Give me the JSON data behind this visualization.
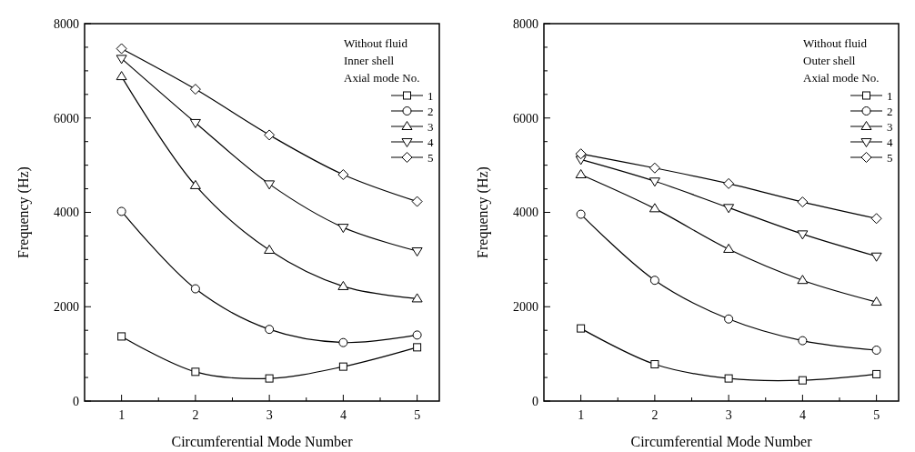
{
  "chart_data": [
    {
      "type": "line",
      "xlabel": "Circumferential Mode Number",
      "ylabel": "Frequency (Hz)",
      "legend_title": "Axial mode No.",
      "annotations": [
        "Without fluid",
        "Inner shell"
      ],
      "legend": "top right",
      "grid": false,
      "line_style": "solid",
      "x": [
        1,
        2,
        3,
        4,
        5
      ],
      "xlim": [
        0.5,
        5.3
      ],
      "xticks": [
        1,
        {
          "value": 1.5,
          "label": null
        },
        2,
        {
          "value": 2.5,
          "label": null
        },
        3,
        {
          "value": 3.5,
          "label": null
        },
        4,
        {
          "value": 4.5,
          "label": null
        },
        5
      ],
      "ylim": [
        0,
        8000
      ],
      "yticks": [
        0,
        {
          "value": 500,
          "label": null
        },
        {
          "value": 1000,
          "label": null
        },
        {
          "value": 1500,
          "label": null
        },
        2000,
        {
          "value": 2500,
          "label": null
        },
        {
          "value": 3000,
          "label": null
        },
        {
          "value": 3500,
          "label": null
        },
        4000,
        {
          "value": 4500,
          "label": null
        },
        {
          "value": 5000,
          "label": null
        },
        {
          "value": 5500,
          "label": null
        },
        6000,
        {
          "value": 6500,
          "label": null
        },
        {
          "value": 7000,
          "label": null
        },
        {
          "value": 7500,
          "label": null
        },
        8000
      ],
      "series": [
        {
          "name": "1",
          "color": "#000000",
          "marker": "square",
          "values": [
            1370,
            620,
            480,
            730,
            1140
          ]
        },
        {
          "name": "2",
          "color": "#000000",
          "marker": "circle",
          "values": [
            4020,
            2380,
            1520,
            1240,
            1400
          ]
        },
        {
          "name": "3",
          "color": "#000000",
          "marker": "triangle",
          "values": [
            6880,
            4570,
            3200,
            2430,
            2170
          ]
        },
        {
          "name": "4",
          "color": "#000000",
          "marker": "triangle-down",
          "values": [
            7260,
            5900,
            4600,
            3680,
            3180
          ]
        },
        {
          "name": "5",
          "color": "#000000",
          "marker": "diamond",
          "values": [
            7470,
            6610,
            5640,
            4800,
            4230
          ]
        }
      ]
    },
    {
      "type": "line",
      "xlabel": "Circumferential Mode Number",
      "ylabel": "Frequency (Hz)",
      "legend_title": "Axial mode No.",
      "annotations": [
        "Without fluid",
        "Outer shell"
      ],
      "legend": "top right",
      "grid": false,
      "line_style": "solid",
      "x": [
        1,
        2,
        3,
        4,
        5
      ],
      "xlim": [
        0.5,
        5.3
      ],
      "xticks": [
        1,
        {
          "value": 1.5,
          "label": null
        },
        2,
        {
          "value": 2.5,
          "label": null
        },
        3,
        {
          "value": 3.5,
          "label": null
        },
        4,
        {
          "value": 4.5,
          "label": null
        },
        5
      ],
      "ylim": [
        0,
        8000
      ],
      "yticks": [
        0,
        {
          "value": 500,
          "label": null
        },
        {
          "value": 1000,
          "label": null
        },
        {
          "value": 1500,
          "label": null
        },
        2000,
        {
          "value": 2500,
          "label": null
        },
        {
          "value": 3000,
          "label": null
        },
        {
          "value": 3500,
          "label": null
        },
        4000,
        {
          "value": 4500,
          "label": null
        },
        {
          "value": 5000,
          "label": null
        },
        {
          "value": 5500,
          "label": null
        },
        6000,
        {
          "value": 6500,
          "label": null
        },
        {
          "value": 7000,
          "label": null
        },
        {
          "value": 7500,
          "label": null
        },
        8000
      ],
      "series": [
        {
          "name": "1",
          "color": "#000000",
          "marker": "square",
          "values": [
            1540,
            780,
            480,
            440,
            570
          ]
        },
        {
          "name": "2",
          "color": "#000000",
          "marker": "circle",
          "values": [
            3960,
            2560,
            1740,
            1280,
            1080
          ]
        },
        {
          "name": "3",
          "color": "#000000",
          "marker": "triangle",
          "values": [
            4800,
            4080,
            3220,
            2560,
            2100
          ]
        },
        {
          "name": "4",
          "color": "#000000",
          "marker": "triangle-down",
          "values": [
            5120,
            4660,
            4100,
            3540,
            3070
          ]
        },
        {
          "name": "5",
          "color": "#000000",
          "marker": "diamond",
          "values": [
            5240,
            4940,
            4610,
            4220,
            3870
          ]
        }
      ]
    }
  ]
}
